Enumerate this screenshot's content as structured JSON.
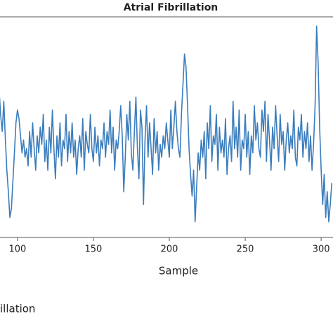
{
  "chart_data": {
    "type": "line",
    "title": "Atrial Fibrillation",
    "xlabel": "Sample",
    "caption": "illation",
    "xlim": [
      88.5,
      307.8
    ],
    "ylim": [
      0,
      100
    ],
    "xticks": [
      100,
      150,
      200,
      250,
      300
    ],
    "x": [
      88,
      89,
      90,
      91,
      92,
      93,
      94,
      95,
      96,
      97,
      98,
      99,
      100,
      101,
      102,
      103,
      104,
      105,
      106,
      107,
      108,
      109,
      110,
      111,
      112,
      113,
      114,
      115,
      116,
      117,
      118,
      119,
      120,
      121,
      122,
      123,
      124,
      125,
      126,
      127,
      128,
      129,
      130,
      131,
      132,
      133,
      134,
      135,
      136,
      137,
      138,
      139,
      140,
      141,
      142,
      143,
      144,
      145,
      146,
      147,
      148,
      149,
      150,
      151,
      152,
      153,
      154,
      155,
      156,
      157,
      158,
      159,
      160,
      161,
      162,
      163,
      164,
      165,
      166,
      167,
      168,
      169,
      170,
      171,
      172,
      173,
      174,
      175,
      176,
      177,
      178,
      179,
      180,
      181,
      182,
      183,
      184,
      185,
      186,
      187,
      188,
      189,
      190,
      191,
      192,
      193,
      194,
      195,
      196,
      197,
      198,
      199,
      200,
      201,
      202,
      203,
      204,
      205,
      206,
      207,
      208,
      209,
      210,
      211,
      212,
      213,
      214,
      215,
      216,
      217,
      218,
      219,
      220,
      221,
      222,
      223,
      224,
      225,
      226,
      227,
      228,
      229,
      230,
      231,
      232,
      233,
      234,
      235,
      236,
      237,
      238,
      239,
      240,
      241,
      242,
      243,
      244,
      245,
      246,
      247,
      248,
      249,
      250,
      251,
      252,
      253,
      254,
      255,
      256,
      257,
      258,
      259,
      260,
      261,
      262,
      263,
      264,
      265,
      266,
      267,
      268,
      269,
      270,
      271,
      272,
      273,
      274,
      275,
      276,
      277,
      278,
      279,
      280,
      281,
      282,
      283,
      284,
      285,
      286,
      287,
      288,
      289,
      290,
      291,
      292,
      293,
      294,
      295,
      296,
      297,
      298,
      299,
      300,
      301,
      302,
      303,
      304,
      305,
      306,
      307
    ],
    "series": [
      {
        "color": "#3b7dbd",
        "values": [
          66,
          55,
          48,
          62,
          45,
          30,
          20,
          8,
          12,
          25,
          38,
          52,
          58,
          54,
          46,
          38,
          44,
          36,
          40,
          32,
          48,
          36,
          52,
          40,
          30,
          46,
          38,
          50,
          42,
          56,
          34,
          44,
          30,
          50,
          38,
          58,
          40,
          26,
          46,
          36,
          52,
          32,
          44,
          40,
          56,
          34,
          48,
          38,
          52,
          36,
          44,
          28,
          40,
          46,
          36,
          54,
          30,
          48,
          42,
          38,
          56,
          40,
          34,
          50,
          38,
          46,
          32,
          44,
          40,
          52,
          36,
          48,
          42,
          58,
          38,
          50,
          30,
          44,
          40,
          48,
          60,
          46,
          20,
          36,
          56,
          44,
          62,
          38,
          30,
          48,
          64,
          40,
          26,
          58,
          50,
          14,
          44,
          60,
          36,
          52,
          40,
          28,
          54,
          38,
          48,
          30,
          42,
          36,
          46,
          40,
          52,
          44,
          36,
          58,
          40,
          50,
          62,
          48,
          40,
          36,
          56,
          70,
          84,
          78,
          60,
          40,
          28,
          18,
          30,
          6,
          22,
          38,
          30,
          44,
          36,
          48,
          26,
          52,
          40,
          60,
          34,
          46,
          42,
          56,
          30,
          50,
          38,
          44,
          36,
          54,
          28,
          40,
          46,
          34,
          62,
          40,
          50,
          36,
          58,
          30,
          44,
          40,
          56,
          36,
          48,
          28,
          46,
          38,
          60,
          44,
          52,
          40,
          36,
          58,
          48,
          62,
          34,
          56,
          44,
          30,
          50,
          40,
          60,
          46,
          34,
          56,
          42,
          48,
          30,
          44,
          52,
          38,
          46,
          40,
          58,
          36,
          32,
          50,
          44,
          56,
          36,
          48,
          40,
          52,
          34,
          46,
          30,
          42,
          60,
          97,
          80,
          50,
          30,
          14,
          28,
          8,
          20,
          6,
          14,
          24
        ]
      }
    ]
  }
}
